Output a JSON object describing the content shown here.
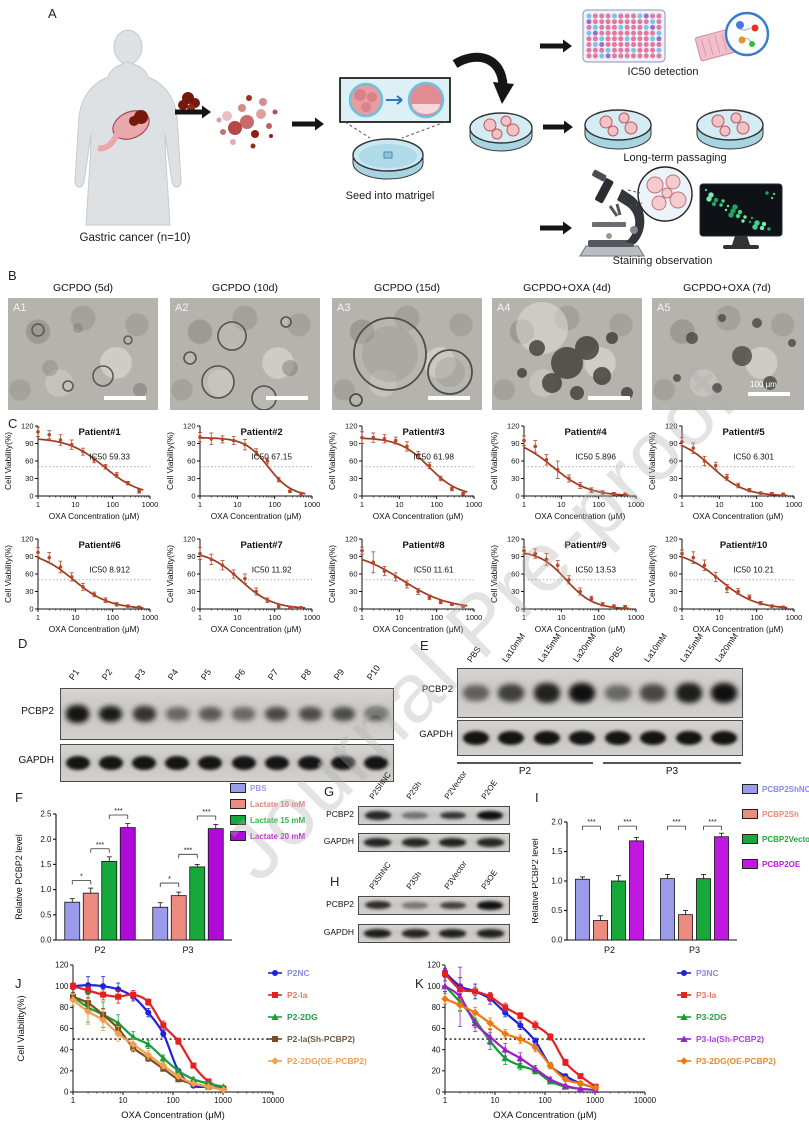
{
  "watermark": {
    "text": "Journal Pre-proof"
  },
  "panels": {
    "a": {
      "label": "A",
      "gastric_caption": "Gastric cancer (n=10)",
      "seed_caption": "Seed into matrigel",
      "ic50_caption": "IC50 detection",
      "passaging_caption": "Long-term passaging",
      "staining_caption": "Staining observation"
    },
    "b": {
      "label": "B",
      "images": [
        {
          "tag": "A1",
          "title": "GCPDO (5d)"
        },
        {
          "tag": "A2",
          "title": "GCPDO (10d)"
        },
        {
          "tag": "A3",
          "title": "GCPDO (15d)"
        },
        {
          "tag": "A4",
          "title": "GCPDO+OXA (4d)"
        },
        {
          "tag": "A5",
          "title": "GCPDO+OXA (7d)",
          "scale_label": "100 μm"
        }
      ]
    },
    "c": {
      "label": "C"
    },
    "d": {
      "label": "D",
      "rows": [
        "PCBP2",
        "GAPDH"
      ],
      "lanes": [
        "P1",
        "P2",
        "P3",
        "P4",
        "P5",
        "P6",
        "P7",
        "P8",
        "P9",
        "P10"
      ],
      "band_intensity": {
        "pcbp2": [
          0.95,
          0.92,
          0.78,
          0.5,
          0.58,
          0.5,
          0.68,
          0.66,
          0.66,
          0.58
        ],
        "gapdh": [
          0.95,
          0.95,
          0.95,
          0.95,
          0.95,
          0.95,
          0.95,
          0.95,
          0.95,
          0.95
        ]
      }
    },
    "e": {
      "label": "E",
      "rows": [
        "PCBP2",
        "GAPDH"
      ],
      "lanes": [
        "PBS",
        "La10mM",
        "La15mM",
        "La20mM",
        "PBS",
        "La10mM",
        "La15mM",
        "La20mM"
      ],
      "groups": [
        "P2",
        "P3"
      ],
      "band_intensity": {
        "pcbp2": [
          0.55,
          0.72,
          0.88,
          0.97,
          0.5,
          0.68,
          0.9,
          0.97
        ],
        "gapdh": [
          0.95,
          0.95,
          0.95,
          0.95,
          0.95,
          0.95,
          0.95,
          0.95
        ]
      }
    },
    "f": {
      "label": "F"
    },
    "g": {
      "label": "G",
      "rows": [
        "PCBP2",
        "GAPDH"
      ],
      "lanes": [
        "P2ShNC",
        "P2Sh",
        "P2Vector",
        "P2OE"
      ],
      "band_intensity": {
        "pcbp2": [
          0.85,
          0.45,
          0.78,
          0.98
        ],
        "gapdh": [
          0.88,
          0.85,
          0.88,
          0.86
        ]
      }
    },
    "h": {
      "label": "H",
      "rows": [
        "PCBP2",
        "GAPDH"
      ],
      "lanes": [
        "P3ShNC",
        "P3Sh",
        "P3Vector",
        "P3OE"
      ],
      "band_intensity": {
        "pcbp2": [
          0.82,
          0.42,
          0.72,
          0.97
        ],
        "gapdh": [
          0.9,
          0.85,
          0.88,
          0.88
        ]
      }
    },
    "i": {
      "label": "I"
    },
    "j": {
      "label": "J"
    },
    "k": {
      "label": "K"
    }
  },
  "chart_data": [
    {
      "id": "C",
      "type": "line",
      "subtype": "dose-response-grid",
      "xlabel": "OXA Concentration (μM)",
      "ylabel": "Cell Viability(%)",
      "xticks": [
        1,
        10,
        100,
        1000
      ],
      "yticks": [
        0,
        30,
        60,
        90,
        120
      ],
      "refline": 50,
      "x": [
        1,
        2,
        4,
        8,
        16,
        32,
        64,
        128,
        256,
        512
      ],
      "curve_color": "#9E3A1D",
      "point_color": "#B5472B",
      "patients": [
        {
          "title": "Patient#1",
          "ic50_label": "IC50 59.33",
          "ic50": 59.33,
          "hill": 0.9,
          "y": [
            110,
            105,
            96,
            88,
            76,
            62,
            50,
            36,
            22,
            8
          ],
          "err": [
            8,
            7,
            9,
            8,
            6,
            5,
            4,
            4,
            3,
            3
          ]
        },
        {
          "title": "Patient#2",
          "ic50_label": "IC50 67.15",
          "ic50": 67.15,
          "hill": 1.4,
          "y": [
            101,
            98,
            97,
            95,
            88,
            75,
            60,
            28,
            8,
            3
          ],
          "err": [
            8,
            10,
            6,
            7,
            9,
            6,
            5,
            4,
            2,
            2
          ]
        },
        {
          "title": "Patient#3",
          "ic50_label": "IC50 61.98",
          "ic50": 61.98,
          "hill": 1.1,
          "y": [
            100,
            100,
            98,
            95,
            85,
            70,
            52,
            30,
            12,
            4
          ],
          "err": [
            10,
            8,
            7,
            6,
            8,
            6,
            5,
            4,
            3,
            2
          ]
        },
        {
          "title": "Patient#4",
          "ic50_label": "IC50 5.896",
          "ic50": 5.896,
          "hill": 0.9,
          "y": [
            95,
            85,
            62,
            45,
            30,
            18,
            10,
            6,
            4,
            3
          ],
          "err": [
            8,
            10,
            9,
            15,
            6,
            5,
            4,
            3,
            2,
            2
          ]
        },
        {
          "title": "Patient#5",
          "ic50_label": "IC50 6.301",
          "ic50": 6.301,
          "hill": 1.0,
          "y": [
            93,
            82,
            60,
            52,
            32,
            18,
            10,
            5,
            4,
            3
          ],
          "err": [
            7,
            9,
            8,
            6,
            5,
            4,
            3,
            2,
            2,
            2
          ]
        },
        {
          "title": "Patient#6",
          "ic50_label": "IC50 8.912",
          "ic50": 8.912,
          "hill": 0.9,
          "y": [
            97,
            88,
            72,
            55,
            38,
            25,
            15,
            8,
            5,
            3
          ],
          "err": [
            8,
            9,
            10,
            7,
            6,
            4,
            4,
            3,
            2,
            2
          ]
        },
        {
          "title": "Patient#7",
          "ic50_label": "IC50 11.92",
          "ic50": 11.92,
          "hill": 1.0,
          "y": [
            95,
            85,
            75,
            60,
            52,
            30,
            15,
            5,
            3,
            2
          ],
          "err": [
            10,
            9,
            8,
            7,
            8,
            6,
            4,
            3,
            2,
            2
          ]
        },
        {
          "title": "Patient#8",
          "ic50_label": "IC50 11.61",
          "ic50": 11.61,
          "hill": 0.7,
          "y": [
            100,
            80,
            65,
            55,
            42,
            30,
            20,
            12,
            8,
            5
          ],
          "err": [
            6,
            18,
            8,
            7,
            6,
            5,
            4,
            3,
            2,
            2
          ]
        },
        {
          "title": "Patient#9",
          "ic50_label": "IC50 13.53",
          "ic50": 13.53,
          "hill": 1.2,
          "y": [
            100,
            95,
            85,
            75,
            50,
            30,
            18,
            8,
            5,
            4
          ],
          "err": [
            6,
            8,
            10,
            8,
            7,
            6,
            4,
            3,
            2,
            2
          ]
        },
        {
          "title": "Patient#10",
          "ic50_label": "IC50 10.21",
          "ic50": 10.21,
          "hill": 0.9,
          "y": [
            95,
            88,
            75,
            55,
            35,
            30,
            20,
            10,
            5,
            3
          ],
          "err": [
            6,
            10,
            9,
            8,
            7,
            5,
            4,
            3,
            2,
            2
          ]
        }
      ]
    },
    {
      "id": "F",
      "type": "bar",
      "ylabel": "Relative PCBP2 level",
      "categories": [
        "P2",
        "P3"
      ],
      "ylim": [
        0,
        2.5
      ],
      "yticks": [
        0,
        0.5,
        1.0,
        1.5,
        2.0,
        2.5
      ],
      "legend_position": "top-right",
      "series": [
        {
          "name": "PBS",
          "color": "#9B9BEB",
          "label_color": "#9B9BEB",
          "values": [
            0.75,
            0.65
          ],
          "err": [
            0.07,
            0.09
          ]
        },
        {
          "name": "Lactate 10 mM",
          "color": "#EE8B80",
          "label_color": "#E8837B",
          "values": [
            0.93,
            0.88
          ],
          "err": [
            0.1,
            0.07
          ]
        },
        {
          "name": "Lactate 15 mM",
          "color": "#17A83C",
          "label_color": "#2DB84C",
          "values": [
            1.56,
            1.45
          ],
          "err": [
            0.09,
            0.05
          ]
        },
        {
          "name": "Lactate 20 mM",
          "color": "#AE0CD6",
          "label_color": "#C42BD8",
          "values": [
            2.23,
            2.21
          ],
          "err": [
            0.08,
            0.08
          ]
        }
      ],
      "significance": [
        {
          "pair": [
            0,
            1
          ],
          "label": "*"
        },
        {
          "pair": [
            1,
            2
          ],
          "label": "***"
        },
        {
          "pair": [
            2,
            3
          ],
          "label": "***"
        }
      ],
      "sig_style": "stack"
    },
    {
      "id": "I",
      "type": "bar",
      "ylabel": "Relative PCBP2 level",
      "categories": [
        "P2",
        "P3"
      ],
      "ylim": [
        0,
        2.0
      ],
      "yticks": [
        0,
        0.5,
        1.0,
        1.5,
        2.0
      ],
      "legend_position": "top-right",
      "series": [
        {
          "name": "PCBP2ShNC",
          "color": "#9B9BEB",
          "label_color": "#8888E8",
          "values": [
            1.03,
            1.04
          ],
          "err": [
            0.04,
            0.07
          ]
        },
        {
          "name": "PCBP2Sh",
          "color": "#EE8B80",
          "label_color": "#E88878",
          "values": [
            0.33,
            0.43
          ],
          "err": [
            0.08,
            0.07
          ]
        },
        {
          "name": "PCBP2Vector",
          "color": "#17A83C",
          "label_color": "#1FAA3C",
          "values": [
            1.0,
            1.04
          ],
          "err": [
            0.09,
            0.07
          ]
        },
        {
          "name": "PCBP2OE",
          "color": "#C018E0",
          "label_color": "#C018E0",
          "values": [
            1.68,
            1.75
          ],
          "err": [
            0.06,
            0.06
          ]
        }
      ],
      "significance": [
        {
          "pair": [
            0,
            1
          ],
          "label": "***"
        },
        {
          "pair": [
            2,
            3
          ],
          "label": "***"
        }
      ],
      "sig_style": "top"
    },
    {
      "id": "J",
      "type": "line",
      "xlabel": "OXA Concentration (μM)",
      "ylabel": "Cell Viability(%)",
      "xticks": [
        1,
        10,
        100,
        1000,
        10000
      ],
      "yticks": [
        0,
        20,
        40,
        60,
        80,
        100,
        120
      ],
      "refline": 50,
      "x": [
        1,
        2,
        4,
        8,
        16,
        32,
        64,
        128,
        256,
        512,
        1024
      ],
      "series": [
        {
          "name": "P2NC",
          "color": "#2020DD",
          "label_color": "#8A8AE8",
          "marker": "circle",
          "values": [
            100,
            101,
            100,
            97,
            90,
            75,
            55,
            20,
            6,
            5,
            3
          ],
          "err": [
            3,
            8,
            9,
            6,
            4,
            4,
            3,
            2,
            1,
            1,
            1
          ]
        },
        {
          "name": "P2-la",
          "color": "#E62020",
          "label_color": "#E87868",
          "marker": "square",
          "values": [
            100,
            96,
            92,
            90,
            92,
            85,
            63,
            48,
            25,
            10,
            3
          ],
          "err": [
            3,
            4,
            5,
            6,
            4,
            3,
            4,
            3,
            2,
            1,
            1
          ]
        },
        {
          "name": "P2-2DG",
          "color": "#18A038",
          "label_color": "#1CA43C",
          "marker": "triangle",
          "values": [
            90,
            80,
            73,
            65,
            52,
            45,
            32,
            20,
            12,
            8,
            5
          ],
          "err": [
            4,
            14,
            12,
            8,
            5,
            4,
            3,
            2,
            2,
            1,
            1
          ]
        },
        {
          "name": "P2-la(Sh-PCBP2)",
          "color": "#7A4E1E",
          "label_color": "#6E5B45",
          "marker": "square",
          "values": [
            90,
            84,
            73,
            60,
            42,
            32,
            22,
            12,
            8,
            5,
            2
          ],
          "err": [
            4,
            5,
            6,
            5,
            4,
            3,
            2,
            2,
            1,
            1,
            1
          ]
        },
        {
          "name": "P2-2DG(OE-PCBP2)",
          "color": "#F0A050",
          "label_color": "#F0A050",
          "marker": "diamond",
          "values": [
            87,
            76,
            68,
            55,
            45,
            35,
            25,
            15,
            8,
            5,
            2
          ],
          "err": [
            5,
            12,
            10,
            7,
            5,
            4,
            3,
            2,
            1,
            1,
            1
          ]
        }
      ]
    },
    {
      "id": "K",
      "type": "line",
      "xlabel": "OXA Concentration (μM)",
      "ylabel": "Cell Viability(%)",
      "xticks": [
        1,
        10,
        100,
        1000,
        10000
      ],
      "yticks": [
        0,
        20,
        40,
        60,
        80,
        100,
        120
      ],
      "refline": 50,
      "x": [
        1,
        2,
        4,
        8,
        16,
        32,
        64,
        128,
        256,
        512,
        1024
      ],
      "series": [
        {
          "name": "P3NC",
          "color": "#2020DD",
          "label_color": "#8A8AE8",
          "marker": "circle",
          "values": [
            113,
            100,
            95,
            88,
            75,
            63,
            48,
            25,
            15,
            8,
            4
          ],
          "err": [
            4,
            8,
            7,
            5,
            4,
            4,
            3,
            3,
            2,
            1,
            1
          ]
        },
        {
          "name": "P3-la",
          "color": "#E62020",
          "label_color": "#E87868",
          "marker": "square",
          "values": [
            112,
            97,
            95,
            90,
            80,
            72,
            63,
            52,
            28,
            15,
            5
          ],
          "err": [
            4,
            5,
            4,
            4,
            4,
            3,
            4,
            3,
            3,
            2,
            1
          ]
        },
        {
          "name": "P3-2DG",
          "color": "#10A030",
          "label_color": "#1CA43C",
          "marker": "triangle",
          "values": [
            100,
            85,
            68,
            48,
            32,
            25,
            20,
            10,
            5,
            3,
            2
          ],
          "err": [
            5,
            8,
            7,
            8,
            6,
            4,
            3,
            2,
            1,
            1,
            1
          ]
        },
        {
          "name": "P3-la(Sh-PCBP2)",
          "color": "#9B20C8",
          "label_color": "#B040D8",
          "marker": "triangle",
          "values": [
            100,
            90,
            65,
            52,
            40,
            32,
            22,
            12,
            6,
            3,
            2
          ],
          "err": [
            5,
            28,
            8,
            7,
            6,
            5,
            3,
            2,
            1,
            1,
            1
          ]
        },
        {
          "name": "P3-2DG(OE-PCBP2)",
          "color": "#F07810",
          "label_color": "#F08820",
          "marker": "diamond",
          "values": [
            88,
            82,
            75,
            65,
            55,
            50,
            42,
            25,
            12,
            8,
            4
          ],
          "err": [
            5,
            6,
            5,
            5,
            4,
            4,
            4,
            3,
            2,
            1,
            1
          ]
        }
      ]
    }
  ]
}
